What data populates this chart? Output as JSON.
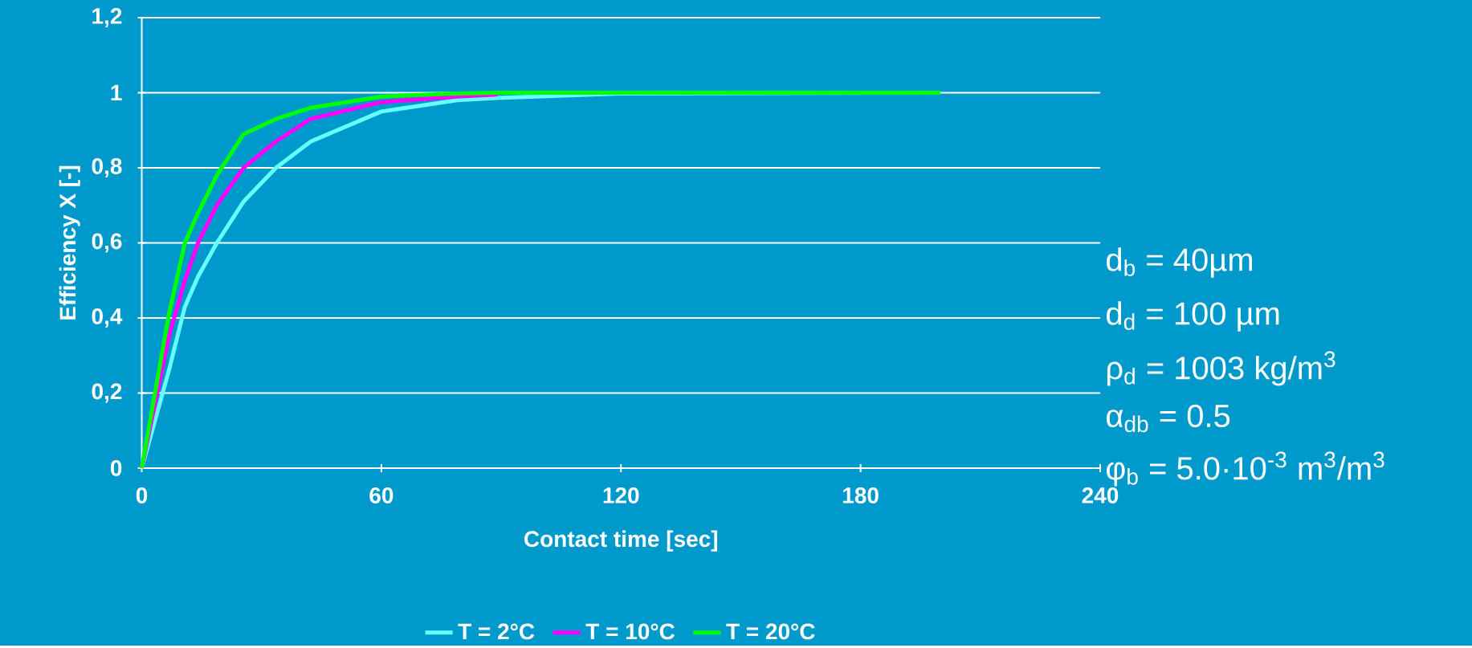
{
  "chart_data": {
    "type": "line",
    "xlabel": "Contact time [sec]",
    "ylabel": "Efficiency X [-]",
    "xlim": [
      0,
      240
    ],
    "xticks": [
      0,
      60,
      120,
      180,
      240
    ],
    "ylim": [
      0,
      1.2
    ],
    "yticks": [
      0,
      {
        "value": 0.2,
        "label": "0,2"
      },
      {
        "value": 0.4,
        "label": "0,4"
      },
      {
        "value": 0.6,
        "label": "0,6"
      },
      {
        "value": 0.8,
        "label": "0,8"
      },
      1,
      {
        "value": 1.2,
        "label": "1,2"
      }
    ],
    "grid": "y",
    "legend": "bottom",
    "line_style": "solid",
    "x": [
      0,
      6.8,
      10.8,
      14.1,
      18.8,
      25.5,
      33.6,
      42.3,
      60,
      79,
      89,
      120,
      150,
      200
    ],
    "series": [
      {
        "name": "T = 2°C",
        "color": "#66ffff",
        "values": [
          0,
          0.26,
          0.43,
          0.51,
          0.6,
          0.71,
          0.8,
          0.87,
          0.95,
          0.98,
          0.986,
          0.998,
          null,
          1
        ]
      },
      {
        "name": "T = 10°C",
        "color": "#ff00ff",
        "values": [
          0,
          0.35,
          0.5,
          0.6,
          0.7,
          0.8,
          0.87,
          0.93,
          0.975,
          0.99,
          0.995,
          null,
          null,
          null
        ]
      },
      {
        "name": "T = 20°C",
        "color": "#00ff00",
        "values": [
          0,
          0.41,
          0.6,
          0.68,
          0.78,
          0.89,
          0.93,
          0.96,
          0.99,
          0.998,
          1,
          1,
          1,
          1
        ]
      }
    ],
    "annotations": [
      "d$_{b}$ = 40µm",
      "d$_{d}$ = 100 µm",
      "ρ$_{d}$ = 1003 kg/m$^{3}$",
      "α$_{db}$ = 0.5",
      "φ$_{b}$ = 5.0·10$^{-3}$ m$^{3}$/m$^{3}$"
    ]
  }
}
